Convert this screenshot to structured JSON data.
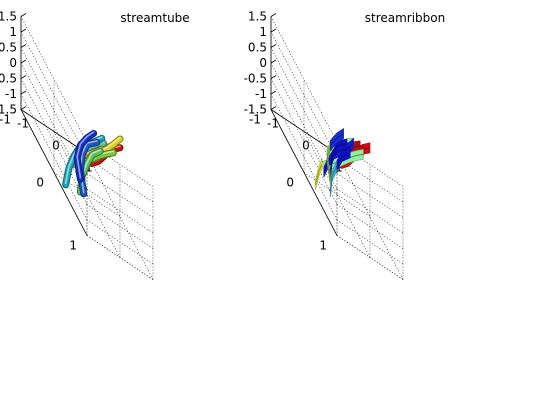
{
  "figure": {
    "background": "#ffffff"
  },
  "chart_data": [
    {
      "type": "3d-streamtube",
      "title": "streamtube",
      "xlim": [
        -1,
        1
      ],
      "ylim": [
        -1,
        1
      ],
      "zlim": [
        -1.5,
        1.5
      ],
      "x_ticks": [
        "-1",
        "0",
        "1"
      ],
      "y_ticks": [
        "-1",
        "0",
        "1"
      ],
      "z_ticks": [
        "-1.5",
        "-1",
        "-0.5",
        "0",
        "0.5",
        "1",
        "1.5"
      ],
      "grid": true,
      "colormap": "jet",
      "series": [
        {
          "color": "#c01808",
          "points": [
            [
              -1.0,
              0.9,
              0.75
            ],
            [
              -0.6,
              0.75,
              0.6
            ],
            [
              -0.2,
              0.55,
              0.55
            ],
            [
              0.2,
              0.35,
              0.62
            ],
            [
              0.6,
              0.15,
              0.68
            ],
            [
              1.0,
              0.0,
              0.72
            ]
          ]
        },
        {
          "color": "#d8500a",
          "points": [
            [
              -0.8,
              0.6,
              0.45
            ],
            [
              -0.4,
              0.45,
              0.3
            ],
            [
              0.0,
              0.3,
              0.32
            ],
            [
              0.4,
              0.15,
              0.42
            ],
            [
              0.8,
              0.0,
              0.48
            ]
          ]
        },
        {
          "color": "#e08a12",
          "points": [
            [
              -0.6,
              0.35,
              0.1
            ],
            [
              -0.2,
              0.2,
              0.05
            ],
            [
              0.2,
              0.05,
              0.12
            ],
            [
              0.6,
              -0.1,
              0.22
            ],
            [
              0.9,
              -0.2,
              0.28
            ]
          ]
        },
        {
          "color": "#dcd020",
          "points": [
            [
              -0.2,
              0.6,
              0.95
            ],
            [
              0.2,
              0.4,
              0.92
            ],
            [
              0.6,
              0.2,
              0.95
            ],
            [
              1.0,
              0.0,
              1.0
            ]
          ]
        },
        {
          "color": "#7ec83c",
          "points": [
            [
              -0.9,
              0.5,
              -0.15
            ],
            [
              -0.5,
              0.35,
              -0.1
            ],
            [
              -0.1,
              0.2,
              -0.05
            ],
            [
              0.3,
              0.05,
              0.05
            ],
            [
              0.7,
              -0.1,
              0.1
            ],
            [
              1.0,
              -0.2,
              0.15
            ]
          ]
        },
        {
          "color": "#62c29a",
          "points": [
            [
              -0.2,
              -0.1,
              -0.45
            ],
            [
              0.2,
              -0.25,
              -0.4
            ],
            [
              0.5,
              -0.35,
              -0.3
            ],
            [
              0.8,
              -0.45,
              -0.2
            ],
            [
              1.0,
              -0.5,
              -0.15
            ]
          ]
        },
        {
          "color": "#1aa6b8",
          "points": [
            [
              -0.95,
              0.3,
              -1.25
            ],
            [
              -0.7,
              0.15,
              -0.85
            ],
            [
              -0.4,
              0.0,
              -0.55
            ],
            [
              -0.1,
              -0.15,
              -0.4
            ],
            [
              0.3,
              -0.3,
              -0.3
            ],
            [
              0.7,
              -0.45,
              -0.2
            ],
            [
              1.0,
              -0.55,
              -0.1
            ]
          ]
        },
        {
          "color": "#5cc25e",
          "points": [
            [
              -0.4,
              0.2,
              -1.3
            ],
            [
              -0.2,
              0.05,
              -0.95
            ],
            [
              0.1,
              -0.1,
              -0.65
            ],
            [
              0.4,
              -0.25,
              -0.45
            ],
            [
              0.8,
              -0.4,
              -0.35
            ]
          ]
        },
        {
          "color": "#1c58c4",
          "points": [
            [
              -0.1,
              0.0,
              -1.55
            ],
            [
              0.0,
              -0.2,
              -1.15
            ],
            [
              0.2,
              -0.35,
              -0.8
            ],
            [
              0.5,
              -0.5,
              -0.55
            ],
            [
              0.9,
              -0.6,
              -0.4
            ]
          ]
        },
        {
          "color": "#1030c8",
          "points": [
            [
              0.1,
              -0.3,
              -1.55
            ],
            [
              0.2,
              -0.5,
              -1.2
            ],
            [
              0.4,
              -0.6,
              -0.85
            ],
            [
              0.7,
              -0.7,
              -0.6
            ],
            [
              1.0,
              -0.8,
              -0.45
            ]
          ]
        }
      ]
    },
    {
      "type": "3d-streamribbon",
      "title": "streamribbon",
      "xlim": [
        -1,
        1
      ],
      "ylim": [
        -1,
        1
      ],
      "zlim": [
        -1.5,
        1.5
      ],
      "x_ticks": [
        "-1",
        "0",
        "1"
      ],
      "y_ticks": [
        "-1",
        "0",
        "1"
      ],
      "z_ticks": [
        "-1.5",
        "-1",
        "-0.5",
        "0",
        "0.5",
        "1",
        "1.5"
      ],
      "grid": true,
      "colormap": "jet",
      "series": [
        {
          "color": "#d40e10",
          "points": [
            [
              -1.0,
              0.9,
              0.75
            ],
            [
              -0.6,
              0.75,
              0.6
            ],
            [
              -0.2,
              0.55,
              0.55
            ],
            [
              0.2,
              0.35,
              0.62
            ],
            [
              0.6,
              0.15,
              0.68
            ],
            [
              1.0,
              0.0,
              0.72
            ]
          ]
        },
        {
          "color": "#c80c0c",
          "points": [
            [
              -0.8,
              0.6,
              0.45
            ],
            [
              -0.4,
              0.45,
              0.3
            ],
            [
              0.0,
              0.3,
              0.32
            ],
            [
              0.4,
              0.15,
              0.42
            ],
            [
              0.8,
              0.0,
              0.48
            ]
          ]
        },
        {
          "color": "#b60c0c",
          "points": [
            [
              -0.6,
              0.35,
              0.15
            ],
            [
              -0.2,
              0.2,
              0.1
            ],
            [
              0.2,
              0.05,
              0.18
            ],
            [
              0.6,
              -0.1,
              0.26
            ],
            [
              0.9,
              -0.2,
              0.3
            ]
          ]
        },
        {
          "color": "#8ef0a0",
          "points": [
            [
              -0.9,
              0.5,
              -0.2
            ],
            [
              -0.5,
              0.35,
              -0.15
            ],
            [
              -0.1,
              0.2,
              -0.1
            ],
            [
              0.3,
              0.05,
              0.0
            ],
            [
              0.7,
              -0.1,
              0.05
            ],
            [
              1.0,
              -0.2,
              0.1
            ]
          ]
        },
        {
          "color": "#8ef0a0",
          "points": [
            [
              -0.2,
              -0.1,
              -0.45
            ],
            [
              0.2,
              -0.25,
              -0.4
            ],
            [
              0.5,
              -0.35,
              -0.3
            ],
            [
              0.8,
              -0.45,
              -0.2
            ],
            [
              1.0,
              -0.5,
              -0.15
            ]
          ]
        },
        {
          "color": "#1818d8",
          "points": [
            [
              -0.6,
              0.2,
              -0.8
            ],
            [
              -0.3,
              0.05,
              -0.55
            ],
            [
              0.0,
              -0.1,
              -0.4
            ],
            [
              0.4,
              -0.25,
              -0.3
            ],
            [
              0.8,
              -0.4,
              -0.2
            ],
            [
              1.0,
              -0.5,
              -0.15
            ]
          ]
        },
        {
          "color": "#e8ec30",
          "points": [
            [
              -0.95,
              0.3,
              -1.25
            ],
            [
              -0.7,
              0.15,
              -0.95
            ],
            [
              -0.5,
              0.05,
              -0.75
            ]
          ]
        },
        {
          "color": "#3ac0e0",
          "points": [
            [
              -0.4,
              0.2,
              -1.3
            ],
            [
              -0.2,
              0.05,
              -0.95
            ],
            [
              0.1,
              -0.1,
              -0.7
            ]
          ]
        },
        {
          "color": "#1010cc",
          "points": [
            [
              0.1,
              -0.1,
              -0.7
            ],
            [
              0.4,
              -0.25,
              -0.5
            ],
            [
              0.8,
              -0.4,
              -0.4
            ]
          ]
        },
        {
          "color": "#1010c4",
          "points": [
            [
              0.0,
              -0.2,
              -1.25
            ],
            [
              0.2,
              -0.35,
              -0.9
            ],
            [
              0.5,
              -0.5,
              -0.6
            ],
            [
              0.9,
              -0.6,
              -0.45
            ]
          ]
        },
        {
          "color": "#a8e040",
          "points": [
            [
              0.1,
              -0.3,
              -1.55
            ],
            [
              0.2,
              -0.5,
              -1.2
            ],
            [
              0.4,
              -0.6,
              -0.85
            ]
          ]
        },
        {
          "color": "#1a30d0",
          "points": [
            [
              0.4,
              -0.6,
              -0.85
            ],
            [
              0.7,
              -0.7,
              -0.6
            ],
            [
              1.0,
              -0.8,
              -0.45
            ]
          ]
        }
      ]
    }
  ]
}
